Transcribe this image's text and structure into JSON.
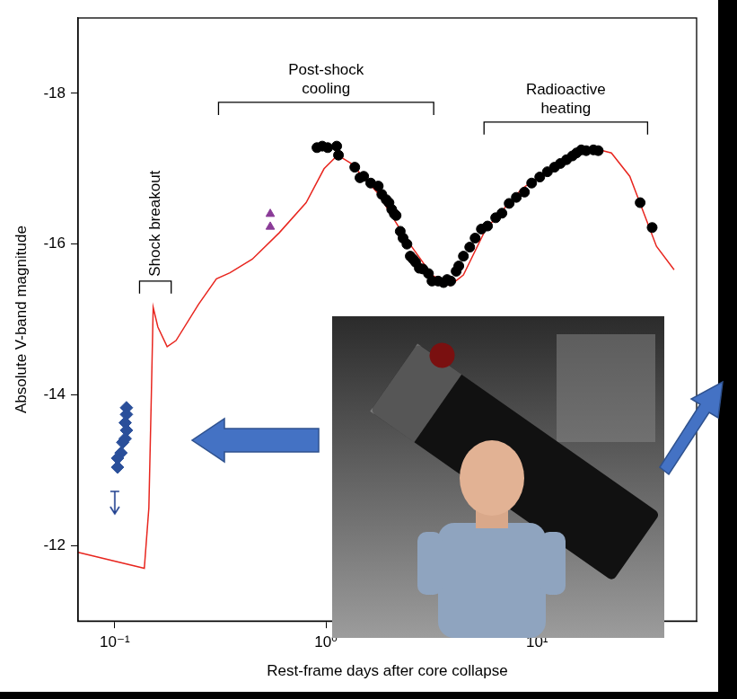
{
  "chart_data": {
    "type": "scatter",
    "x_label": "Rest-frame days after core collapse",
    "y_label": "Absolute V-band magnitude",
    "log": "x",
    "grid": false,
    "xlim": [
      0.067,
      57
    ],
    "xticks": [
      {
        "value": 0.1,
        "label": "10⁻¹"
      },
      {
        "value": 1,
        "label": "10⁰"
      },
      {
        "value": 10,
        "label": "10¹"
      }
    ],
    "ylim": [
      -11,
      -19
    ],
    "yticks": [
      -18,
      -16,
      -14,
      -12
    ],
    "series": [
      {
        "type": "line",
        "color": "#e8261f",
        "marker": "none",
        "line_style": "solid",
        "x": [
          0.067,
          0.138,
          0.145,
          0.149,
          0.152,
          0.16,
          0.177,
          0.195,
          0.249,
          0.303,
          0.351,
          0.448,
          0.601,
          0.806,
          0.98,
          1.136,
          1.316,
          1.77,
          2.37,
          3.18,
          3.87,
          4.48,
          5.72,
          8.44,
          12.5,
          18.5,
          22.5,
          27.5,
          36.8,
          44.6
        ],
        "values": [
          -11.91,
          -11.7,
          -12.5,
          -14.0,
          -15.16,
          -14.9,
          -14.64,
          -14.72,
          -15.2,
          -15.54,
          -15.62,
          -15.8,
          -16.15,
          -16.55,
          -17.0,
          -17.18,
          -17.07,
          -16.67,
          -16.09,
          -15.59,
          -15.45,
          -15.59,
          -16.2,
          -16.73,
          -17.07,
          -17.27,
          -17.21,
          -16.9,
          -15.97,
          -15.66
        ]
      },
      {
        "type": "scatter",
        "color": "#000000",
        "marker": "circle",
        "x": [
          0.907,
          0.961,
          1.02,
          1.125,
          1.147,
          1.37,
          1.45,
          1.51,
          1.63,
          1.77,
          1.84,
          1.93,
          1.99,
          2.05,
          2.11,
          2.15,
          2.25,
          2.32,
          2.42,
          2.51,
          2.59,
          2.66,
          2.77,
          2.88,
          3.06,
          3.18,
          3.4,
          3.61,
          3.75,
          3.9,
          4.14,
          4.26,
          4.48,
          4.8,
          5.09,
          5.45,
          5.83,
          6.37,
          6.82,
          7.38,
          7.98,
          8.72,
          9.43,
          10.3,
          11.2,
          12.1,
          12.9,
          13.8,
          14.7,
          15.4,
          16.2,
          17.1,
          18.5,
          19.5,
          30.8,
          35.1
        ],
        "values": [
          -17.28,
          -17.3,
          -17.28,
          -17.3,
          -17.18,
          -17.02,
          -16.88,
          -16.9,
          -16.81,
          -16.77,
          -16.66,
          -16.59,
          -16.55,
          -16.46,
          -16.4,
          -16.38,
          -16.17,
          -16.08,
          -16.0,
          -15.84,
          -15.8,
          -15.76,
          -15.68,
          -15.67,
          -15.61,
          -15.51,
          -15.51,
          -15.49,
          -15.53,
          -15.51,
          -15.64,
          -15.71,
          -15.84,
          -15.96,
          -16.08,
          -16.2,
          -16.24,
          -16.35,
          -16.41,
          -16.54,
          -16.62,
          -16.69,
          -16.81,
          -16.89,
          -16.96,
          -17.02,
          -17.07,
          -17.12,
          -17.17,
          -17.21,
          -17.25,
          -17.24,
          -17.25,
          -17.24,
          -16.55,
          -16.22
        ]
      },
      {
        "type": "scatter",
        "color": "#2a4f9a",
        "marker": "diamond",
        "x": [
          0.1136,
          0.1136,
          0.112,
          0.1136,
          0.112,
          0.109,
          0.107,
          0.103,
          0.103
        ],
        "values": [
          -13.83,
          -13.74,
          -13.63,
          -13.53,
          -13.42,
          -13.37,
          -13.23,
          -13.16,
          -13.04
        ]
      },
      {
        "type": "scatter",
        "color": "#8a3b97",
        "marker": "triangle",
        "x": [
          0.545,
          0.545
        ],
        "values": [
          -16.4,
          -16.23
        ]
      },
      {
        "type": "scatter",
        "color": "#1f3f8f",
        "marker": "arrow_down",
        "x": [
          0.1
        ],
        "values": [
          -12.72
        ]
      }
    ],
    "annotations": [
      {
        "text": "Shock breakout",
        "x": [
          0.131,
          0.185
        ],
        "y": -15.51
      },
      {
        "text": "Post-shock\ncooling",
        "x": [
          0.31,
          3.24
        ],
        "y": -17.88
      },
      {
        "text": "Radioactive\nheating",
        "x": [
          5.61,
          33.4
        ],
        "y": -17.62
      }
    ]
  }
}
